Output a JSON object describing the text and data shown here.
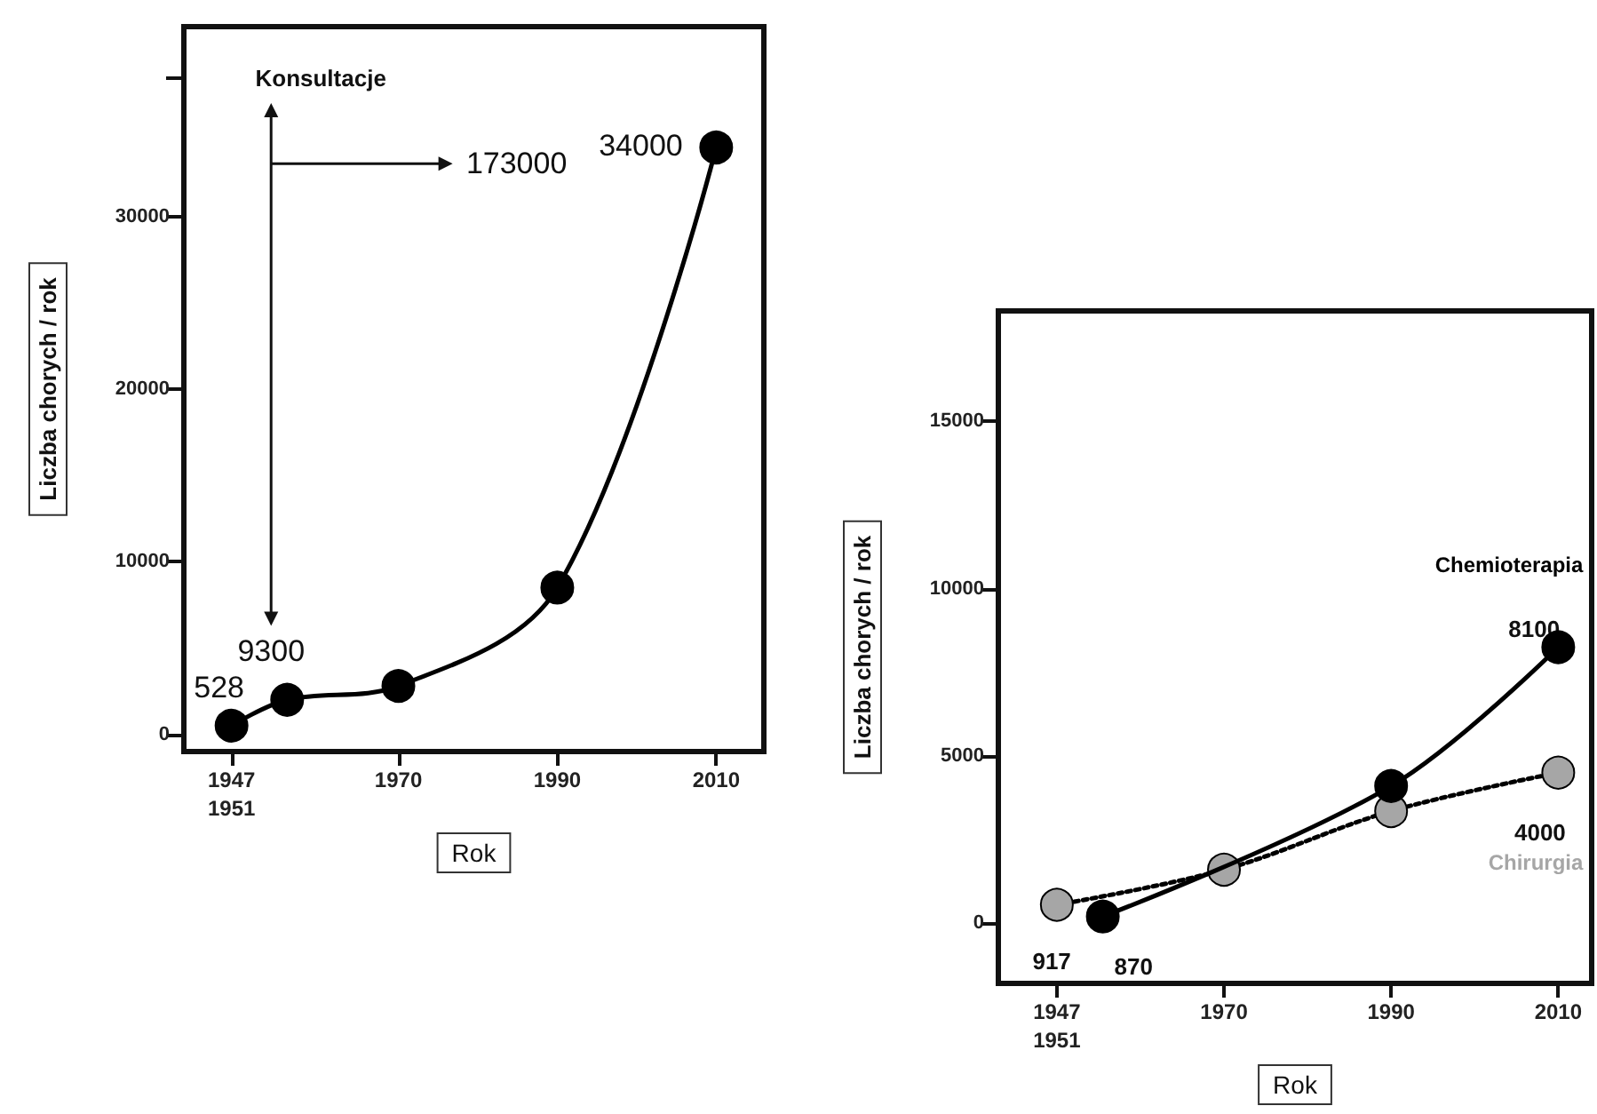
{
  "chart_data": [
    {
      "type": "line",
      "xlabel": "Rok",
      "ylabel": "Liczba chorych / rok",
      "x": [
        1949,
        1956,
        1970,
        1990,
        2010
      ],
      "series": [
        {
          "color": "#000000",
          "values": [
            500,
            2000,
            2800,
            8500,
            34000
          ]
        }
      ],
      "xlim": [
        1943,
        2016
      ],
      "ylim": [
        -1000,
        41000
      ],
      "xticks": [
        {
          "value": 1949,
          "label": "1947\n1951"
        },
        1970,
        1990,
        2010
      ],
      "yticks": [
        0,
        10000,
        20000,
        30000,
        {
          "value": 38000,
          "label": null
        }
      ],
      "annotations": [
        "Konsultacje",
        "173000",
        "9300",
        "528",
        "34000"
      ],
      "grid": false,
      "legend": false,
      "marker": "circle",
      "line_style": "solid"
    },
    {
      "type": "line",
      "xlabel": "Rok",
      "ylabel": "Liczba chorych / rok",
      "series": [
        {
          "name": "Chemioterapia",
          "color": "#000000",
          "x": [
            1955.5,
            1990,
            2010
          ],
          "values": [
            200,
            4100,
            8250
          ],
          "line_style": "solid"
        },
        {
          "name": "Chirurgia",
          "color": "#a6a6a6",
          "x": [
            1950,
            1970,
            1990,
            2010
          ],
          "values": [
            550,
            1600,
            3350,
            4500
          ],
          "line_style": "dotted"
        }
      ],
      "xlim": [
        1943,
        2014
      ],
      "ylim": [
        -1800,
        18300
      ],
      "xticks": [
        {
          "value": 1950,
          "label": "1947\n1951"
        },
        1970,
        1990,
        2010
      ],
      "yticks": [
        0,
        5000,
        10000,
        15000
      ],
      "annotations": [
        "917",
        "870",
        "8100",
        "4000"
      ],
      "grid": false,
      "legend": false,
      "marker": "circle"
    }
  ]
}
